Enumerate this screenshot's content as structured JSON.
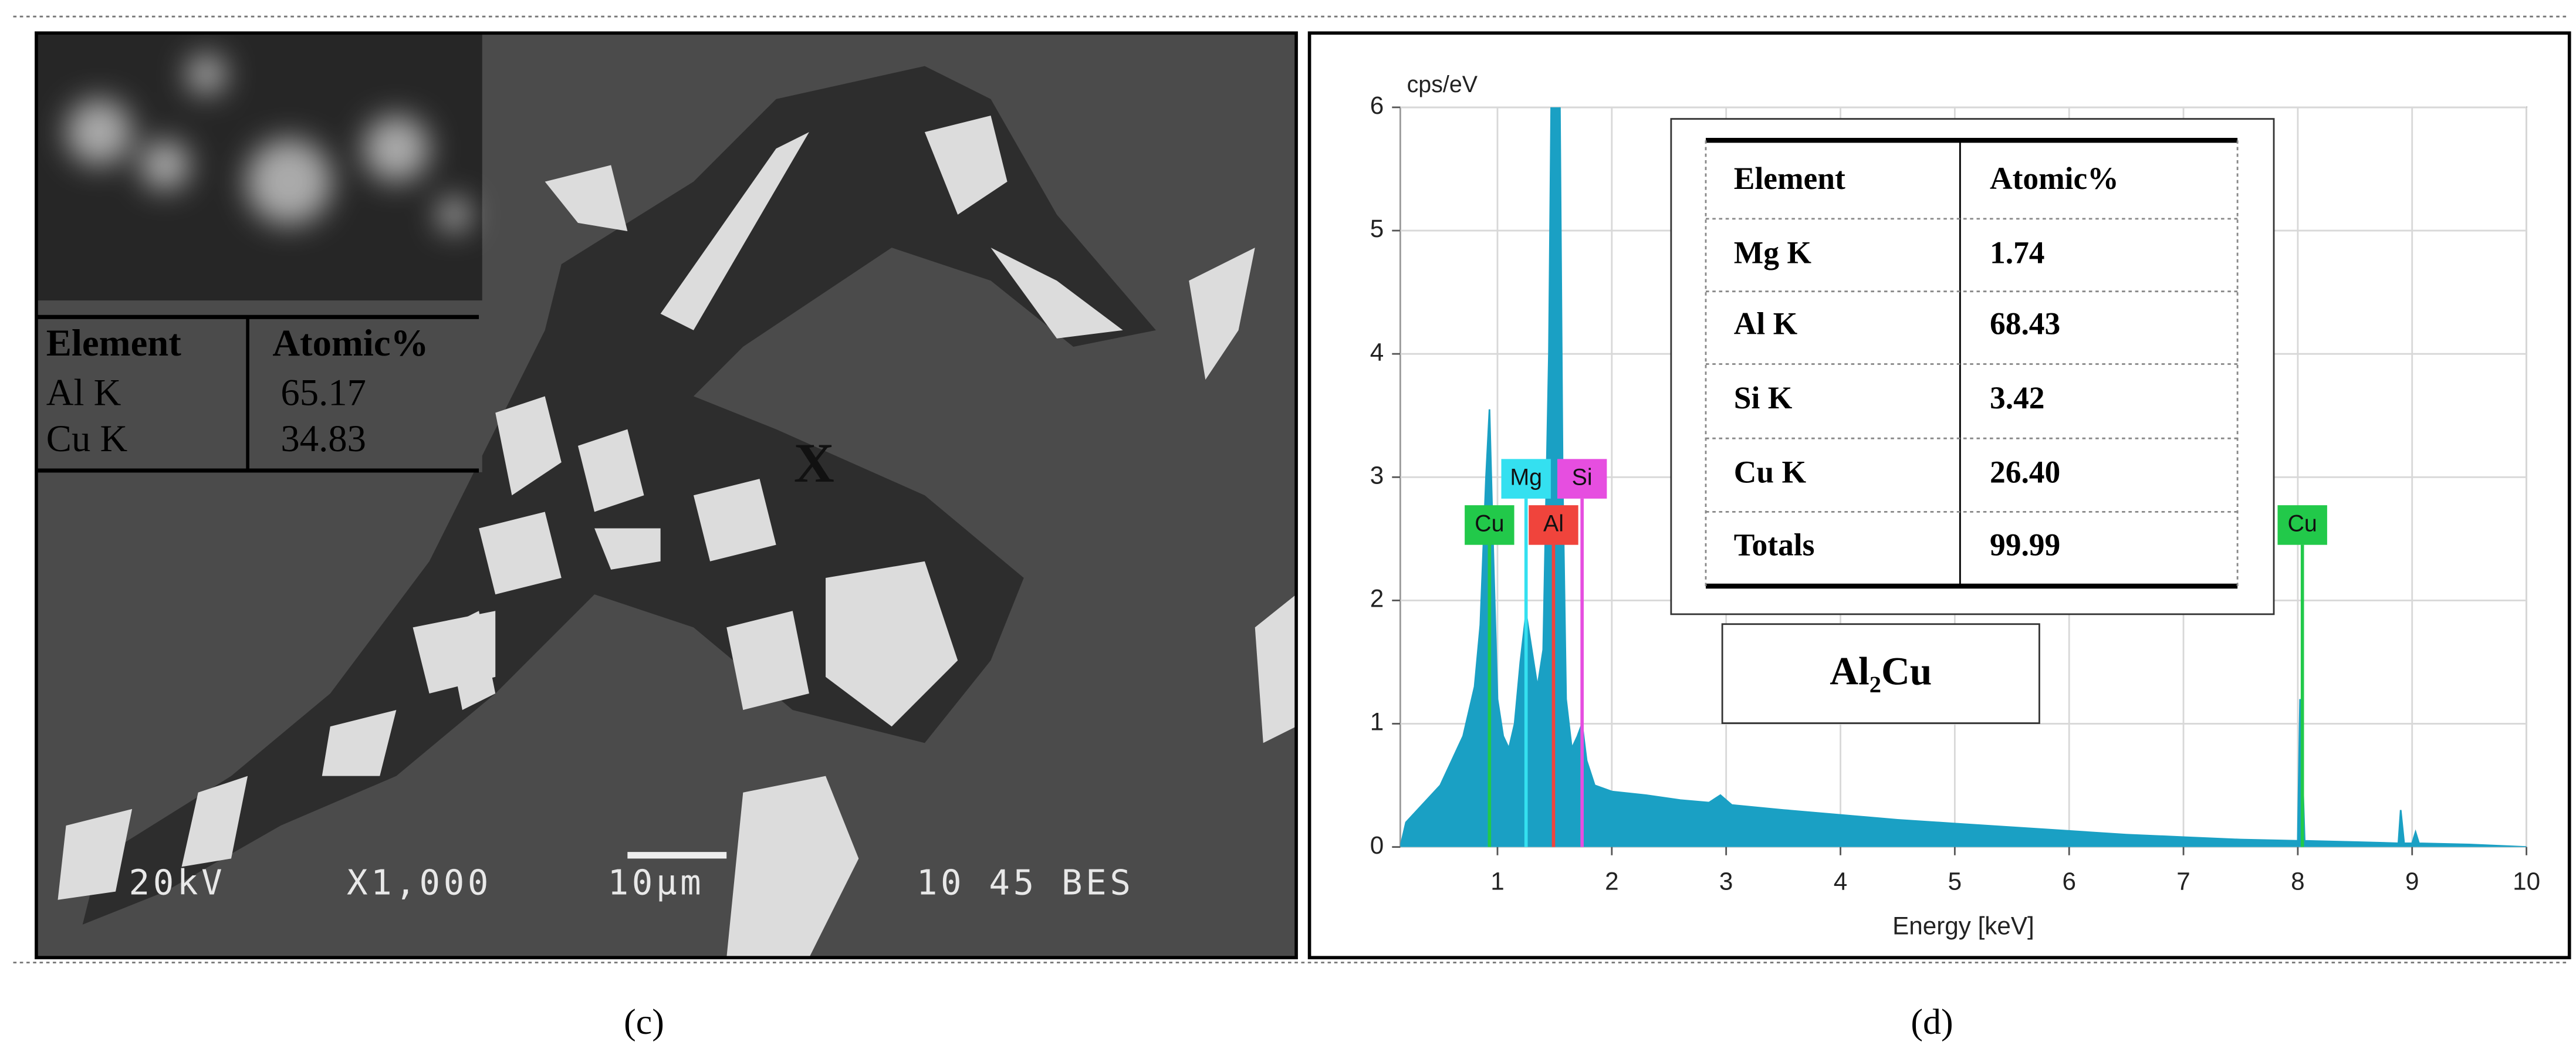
{
  "sem": {
    "label": "(c)",
    "table": {
      "header": [
        "Element",
        "Atomic%"
      ],
      "rows": [
        [
          "Al K",
          "65.17"
        ],
        [
          "Cu K",
          "34.83"
        ]
      ]
    },
    "marker": "X",
    "info": [
      "20kV",
      "X1,000",
      "10μm",
      "10 45 BES"
    ]
  },
  "eds": {
    "label": "(d)",
    "table": {
      "header": [
        "Element",
        "Atomic%"
      ],
      "rows": [
        [
          "Mg K",
          "1.74"
        ],
        [
          "Al K",
          "68.43"
        ],
        [
          "Si K",
          "3.42"
        ],
        [
          "Cu K",
          "26.40"
        ],
        [
          "Totals",
          "99.99"
        ]
      ]
    },
    "phase": "Al₂Cu"
  },
  "chart_data": {
    "type": "area",
    "y_label": "cps/eV",
    "x_label": "Energy [keV]",
    "xlim": [
      0.15,
      10
    ],
    "ylim": [
      0,
      6
    ],
    "xticks": [
      1,
      2,
      3,
      4,
      5,
      6,
      7,
      8,
      9,
      10
    ],
    "yticks": [
      0,
      1,
      2,
      3,
      4,
      5,
      6
    ],
    "grid": true,
    "color": "#1aa0c4",
    "x": [
      0.15,
      0.2,
      0.3,
      0.4,
      0.5,
      0.6,
      0.7,
      0.8,
      0.85,
      0.9,
      0.93,
      0.96,
      1.0,
      1.05,
      1.1,
      1.15,
      1.2,
      1.25,
      1.3,
      1.35,
      1.4,
      1.45,
      1.49,
      1.53,
      1.57,
      1.6,
      1.65,
      1.7,
      1.74,
      1.78,
      1.85,
      2.0,
      2.3,
      2.6,
      2.85,
      2.95,
      3.05,
      3.5,
      4.0,
      4.5,
      5.0,
      5.5,
      6.0,
      6.5,
      7.0,
      7.5,
      8.0,
      8.02,
      8.06,
      8.5,
      8.88,
      8.9,
      8.93,
      9.0,
      9.03,
      9.06,
      9.5,
      10
    ],
    "values": [
      0,
      0.2,
      0.3,
      0.4,
      0.5,
      0.7,
      0.9,
      1.3,
      1.8,
      3.0,
      3.55,
      2.5,
      1.2,
      0.9,
      0.8,
      1.0,
      1.5,
      1.9,
      1.6,
      1.3,
      1.6,
      4.0,
      8.0,
      8.0,
      3.0,
      1.2,
      0.8,
      0.9,
      1.0,
      0.7,
      0.5,
      0.45,
      0.42,
      0.38,
      0.36,
      0.42,
      0.34,
      0.3,
      0.26,
      0.22,
      0.19,
      0.16,
      0.13,
      0.1,
      0.08,
      0.06,
      0.05,
      1.2,
      0.05,
      0.04,
      0.03,
      0.3,
      0.03,
      0.03,
      0.12,
      0.03,
      0.02,
      0
    ],
    "peak_labels": [
      {
        "label": "Cu",
        "x": 0.93,
        "color": "#22c94a"
      },
      {
        "label": "Mg",
        "x": 1.25,
        "color": "#34e0f0"
      },
      {
        "label": "Al",
        "x": 1.49,
        "color": "#f0443c"
      },
      {
        "label": "Si",
        "x": 1.74,
        "color": "#e64ee0"
      },
      {
        "label": "Cu",
        "x": 8.04,
        "color": "#22c94a"
      }
    ]
  }
}
